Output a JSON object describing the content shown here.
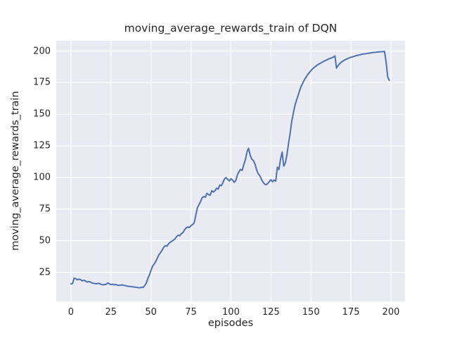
{
  "chart_data": {
    "type": "line",
    "title": "moving_average_rewards_train of DQN",
    "xlabel": "episodes",
    "ylabel": "moving_average_rewards_train",
    "x_ticks": [
      0,
      25,
      50,
      75,
      100,
      125,
      150,
      175,
      200
    ],
    "y_ticks": [
      25,
      50,
      75,
      100,
      125,
      150,
      175,
      200
    ],
    "xlim": [
      -9.2,
      208.8
    ],
    "ylim": [
      2.0,
      208.1
    ],
    "grid": true,
    "legend": false,
    "style": {
      "line_color": "#4C72B0",
      "line_width": 2,
      "plot_bg": "#EAEAF2",
      "grid_color": "#FFFFFF",
      "grid_width": 1.3,
      "text_color": "#262626",
      "figure_bg": "#FFFFFF"
    },
    "series": [
      {
        "name": "moving_average_rewards_train",
        "x_start": 0,
        "x_step": 1,
        "values": [
          15.8,
          16.1,
          20.4,
          20.0,
          19.1,
          19.6,
          19.2,
          18.2,
          18.7,
          18.3,
          17.3,
          17.7,
          17.4,
          16.7,
          16.3,
          16.1,
          15.9,
          16.3,
          16.0,
          15.4,
          15.1,
          15.3,
          15.5,
          16.6,
          15.9,
          15.3,
          15.6,
          15.1,
          15.3,
          14.9,
          14.7,
          14.8,
          15.0,
          14.7,
          14.5,
          14.1,
          13.9,
          13.8,
          13.6,
          13.5,
          13.3,
          13.1,
          12.9,
          12.7,
          13.2,
          12.9,
          14.4,
          16.2,
          20.0,
          22.8,
          26.5,
          29.8,
          31.5,
          33.6,
          36.2,
          39.0,
          40.6,
          42.6,
          44.9,
          46.1,
          45.7,
          47.6,
          48.7,
          49.6,
          50.4,
          51.3,
          53.2,
          54.4,
          53.9,
          55.6,
          56.4,
          58.6,
          60.1,
          60.9,
          60.4,
          61.9,
          62.8,
          64.0,
          70.0,
          76.0,
          78.5,
          81.0,
          84.0,
          85.0,
          84.4,
          87.5,
          86.5,
          86.0,
          89.5,
          88.5,
          89.5,
          91.5,
          90.8,
          94.0,
          93.5,
          96.0,
          99.0,
          99.9,
          98.5,
          97.3,
          99.0,
          98.0,
          96.2,
          97.5,
          102.0,
          104.5,
          106.4,
          105.6,
          110.0,
          114.0,
          120.0,
          123.2,
          117.8,
          114.6,
          113.5,
          110.8,
          106.2,
          103.0,
          101.5,
          98.8,
          96.4,
          94.8,
          94.3,
          95.2,
          96.8,
          98.2,
          96.7,
          98.0,
          97.1,
          108.2,
          106.3,
          114.5,
          120.1,
          109.0,
          111.5,
          118.0,
          127.0,
          135.0,
          144.5,
          151.0,
          157.0,
          161.2,
          165.0,
          169.0,
          172.5,
          175.0,
          177.5,
          179.5,
          181.5,
          183.0,
          184.5,
          185.9,
          187.0,
          188.0,
          189.0,
          189.8,
          190.5,
          191.2,
          191.9,
          192.5,
          193.1,
          193.7,
          194.2,
          194.7,
          195.2,
          196.2,
          186.5,
          188.6,
          190.1,
          191.2,
          192.1,
          192.9,
          193.5,
          194.1,
          194.6,
          195.1,
          195.5,
          195.9,
          196.3,
          196.6,
          196.9,
          197.2,
          197.5,
          197.7,
          197.9,
          198.1,
          198.3,
          198.5,
          198.7,
          198.9,
          199.0,
          199.2,
          199.3,
          199.4,
          199.5,
          199.6,
          199.7,
          191.0,
          179.5,
          176.9
        ]
      }
    ]
  }
}
